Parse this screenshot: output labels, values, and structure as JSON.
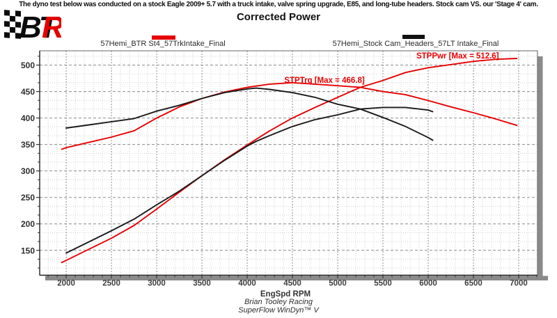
{
  "banner": "The dyno test below was conducted on a stock Eagle 2009+ 5.7 with a truck intake, valve spring upgrade, E85, and long-tube headers. Stock cam VS. our 'Stage 4' cam.",
  "title": "Corrected Power",
  "logo": {
    "letters_black": "BT",
    "letters_red": "R",
    "red": "#e60000",
    "black": "#0c0c0c"
  },
  "legend": [
    {
      "label": "57Hemi_BTR St4_57TrkIntake_Final",
      "color": "#e60000"
    },
    {
      "label": "57Hemi_Stock Cam_Headers_57LT Intake_Final",
      "color": "#111111"
    }
  ],
  "footer": {
    "line1": "Brian Tooley Racing",
    "line2": "SuperFlow WinDyn™ V"
  },
  "chart_data": {
    "type": "line",
    "xlabel": "EngSpd RPM",
    "x_range": [
      1707,
      7208
    ],
    "y_range": [
      103,
      527
    ],
    "x_major_ticks": [
      2000,
      2500,
      3000,
      3500,
      4000,
      4500,
      5000,
      5500,
      6000,
      6500,
      7000
    ],
    "x_minor_step": 100,
    "y_major_ticks": [
      150,
      200,
      250,
      300,
      350,
      400,
      450,
      500
    ],
    "y_minor_step": 16.667,
    "grid": {
      "minor_color": "#cfcfcf",
      "major_color": "#8c8c8c"
    },
    "annotations": [
      {
        "text": "STPTrq [Max = 466.8]",
        "rpm": 4410,
        "value": 466.5,
        "color": "#e60000"
      },
      {
        "text": "STPPwr [Max = 512.6]",
        "rpm": 5869,
        "value": 512.5,
        "color": "#e60000"
      }
    ],
    "series": [
      {
        "name": "57Hemi_BTR St4_57TrkIntake_Final — STPTrq",
        "color": "#e60000",
        "x": [
          1950,
          2000,
          2250,
          2500,
          2750,
          3000,
          3250,
          3500,
          3750,
          4000,
          4250,
          4500,
          4750,
          5000,
          5250,
          5500,
          5750,
          6000,
          6250,
          6500,
          6750,
          6980
        ],
        "y": [
          341,
          344,
          354,
          364,
          376,
          400,
          421,
          437,
          449,
          458,
          464,
          466.8,
          464,
          461,
          458,
          450,
          444,
          433,
          421,
          410,
          398,
          386
        ]
      },
      {
        "name": "57Hemi_BTR St4_57TrkIntake_Final — STPPwr",
        "color": "#e60000",
        "x": [
          1950,
          2000,
          2250,
          2500,
          2750,
          3000,
          3250,
          3500,
          3750,
          4000,
          4250,
          4500,
          4750,
          5000,
          5250,
          5500,
          5750,
          6000,
          6250,
          6500,
          6750,
          6980
        ],
        "y": [
          127,
          131,
          152,
          173,
          197,
          228,
          260,
          291,
          321,
          349,
          376,
          400,
          420,
          439,
          458,
          471,
          486,
          495,
          501,
          507,
          511,
          512.6
        ]
      },
      {
        "name": "57Hemi_Stock Cam_Headers_57LT Intake_Final — STPTrq",
        "color": "#1a1a1a",
        "x": [
          2000,
          2250,
          2500,
          2750,
          3000,
          3250,
          3500,
          3750,
          4000,
          4100,
          4250,
          4500,
          4750,
          5000,
          5250,
          5500,
          5750,
          6000,
          6050
        ],
        "y": [
          381,
          387,
          393,
          399,
          413,
          424,
          437,
          448,
          455,
          456.5,
          454,
          448,
          439,
          426,
          417,
          401,
          384,
          363,
          358
        ]
      },
      {
        "name": "57Hemi_Stock Cam_Headers_57LT Intake_Final — STPPwr",
        "color": "#1a1a1a",
        "x": [
          2000,
          2250,
          2500,
          2750,
          3000,
          3250,
          3500,
          3750,
          4000,
          4100,
          4250,
          4500,
          4750,
          5000,
          5250,
          5500,
          5750,
          6000,
          6050
        ],
        "y": [
          145,
          166,
          187,
          209,
          236,
          262,
          291,
          320,
          347,
          356,
          367,
          384,
          397,
          406,
          417,
          420,
          420,
          415,
          412
        ]
      }
    ]
  }
}
